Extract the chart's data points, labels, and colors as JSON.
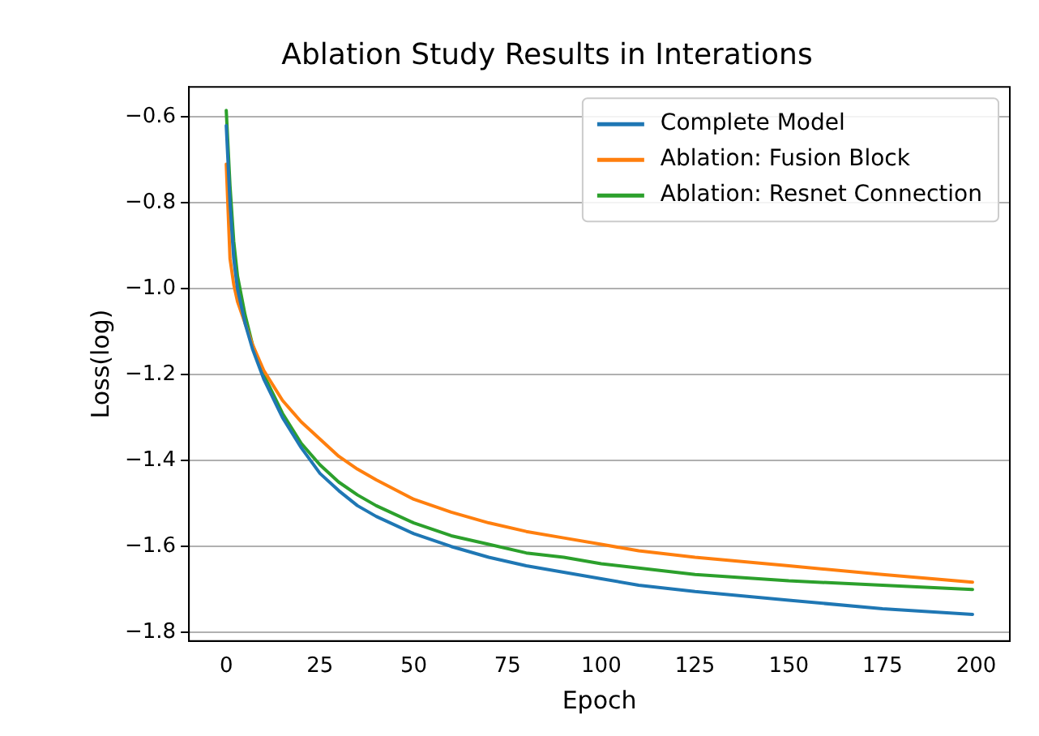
{
  "chart_data": {
    "type": "line",
    "title": "Ablation Study Results in Interations",
    "xlabel": "Epoch",
    "ylabel": "Loss(log)",
    "x": [
      0,
      1,
      2,
      3,
      5,
      7,
      10,
      15,
      20,
      25,
      30,
      35,
      40,
      50,
      60,
      70,
      80,
      90,
      100,
      110,
      125,
      150,
      175,
      199
    ],
    "series": [
      {
        "name": "Complete Model",
        "color": "#1f77b4",
        "values": [
          -0.62,
          -0.8,
          -0.93,
          -1.0,
          -1.08,
          -1.14,
          -1.21,
          -1.3,
          -1.37,
          -1.43,
          -1.47,
          -1.505,
          -1.53,
          -1.57,
          -1.6,
          -1.625,
          -1.645,
          -1.66,
          -1.675,
          -1.69,
          -1.705,
          -1.725,
          -1.745,
          -1.758
        ]
      },
      {
        "name": "Ablation: Fusion Block",
        "color": "#ff7f0e",
        "values": [
          -0.71,
          -0.93,
          -0.99,
          -1.03,
          -1.08,
          -1.13,
          -1.19,
          -1.26,
          -1.31,
          -1.35,
          -1.39,
          -1.42,
          -1.445,
          -1.49,
          -1.52,
          -1.545,
          -1.565,
          -1.58,
          -1.595,
          -1.61,
          -1.625,
          -1.645,
          -1.665,
          -1.683
        ]
      },
      {
        "name": "Ablation: Resnet Connection",
        "color": "#2ca02c",
        "values": [
          -0.585,
          -0.76,
          -0.89,
          -0.97,
          -1.06,
          -1.13,
          -1.2,
          -1.29,
          -1.36,
          -1.41,
          -1.45,
          -1.48,
          -1.505,
          -1.545,
          -1.575,
          -1.595,
          -1.615,
          -1.625,
          -1.64,
          -1.65,
          -1.665,
          -1.68,
          -1.69,
          -1.7
        ]
      }
    ],
    "xlim": [
      -9.95,
      208.95
    ],
    "xticks": [
      0,
      25,
      50,
      75,
      100,
      125,
      150,
      175,
      200
    ],
    "ylim": [
      -1.82,
      -0.53
    ],
    "yticks": [
      -1.8,
      -1.6,
      -1.4,
      -1.2,
      {
        "value": -1,
        "label": "−1.0"
      },
      -0.8,
      -0.6
    ],
    "grid": "y",
    "legend": "top right",
    "marker": "none",
    "line_style": "solid"
  }
}
